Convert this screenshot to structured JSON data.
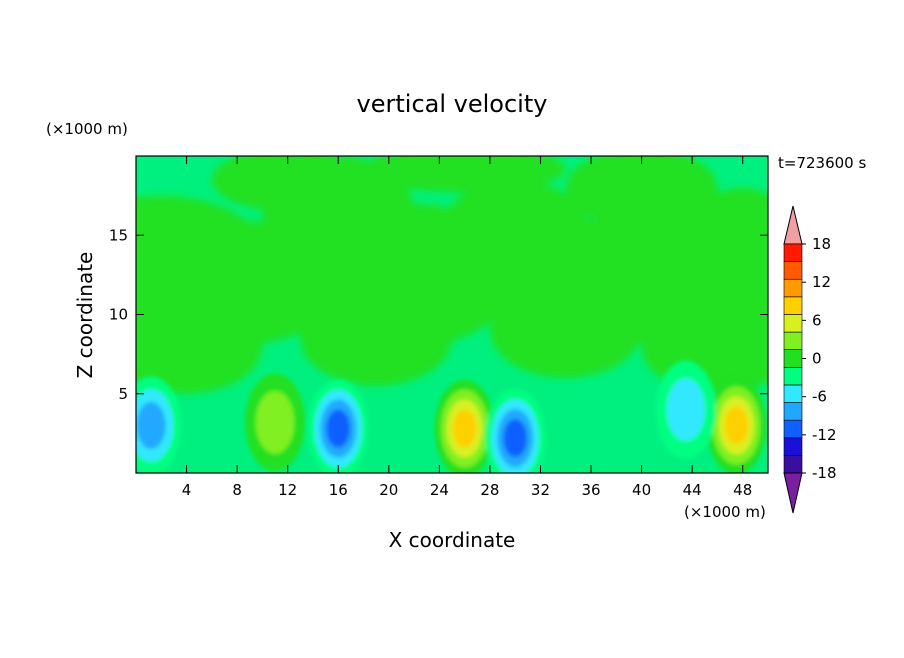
{
  "chart_data": {
    "type": "heatmap",
    "title": "vertical velocity",
    "time_label": "t=723600 s",
    "xlabel": "X coordinate",
    "ylabel": "Z coordinate",
    "x_unit_label": "(×1000 m)",
    "y_unit_label": "(×1000 m)",
    "xlim": [
      0,
      50
    ],
    "ylim": [
      0,
      20
    ],
    "x_ticks": [
      4,
      8,
      12,
      16,
      20,
      24,
      28,
      32,
      36,
      40,
      44,
      48
    ],
    "y_ticks": [
      5,
      10,
      15
    ],
    "colorbar": {
      "levels": [
        -21,
        -18,
        -15,
        -12,
        -9,
        -6,
        -3,
        0,
        3,
        6,
        9,
        12,
        15,
        18,
        21
      ],
      "tick_labels": [
        "18",
        "12",
        "6",
        "0",
        "-6",
        "-12",
        "-18"
      ],
      "tick_values": [
        18,
        12,
        6,
        0,
        -6,
        -12,
        -18
      ],
      "colors": [
        "#7a1fa0",
        "#3a0fa0",
        "#1a10d8",
        "#1060ff",
        "#20a8ff",
        "#30e8ff",
        "#00ff80",
        "#20e020",
        "#80f020",
        "#d8f020",
        "#ffd000",
        "#ff9a00",
        "#ff5a00",
        "#ff1a00",
        "#f0a0a0"
      ]
    },
    "features": [
      {
        "kind": "updraft",
        "x": 11,
        "z": 3.2,
        "peak": 6
      },
      {
        "kind": "updraft",
        "x": 26,
        "z": 2.8,
        "peak": 12
      },
      {
        "kind": "updraft",
        "x": 47.5,
        "z": 3.0,
        "peak": 12
      },
      {
        "kind": "downdraft",
        "x": 1.2,
        "z": 3.0,
        "peak": -9
      },
      {
        "kind": "downdraft",
        "x": 16,
        "z": 2.8,
        "peak": -12
      },
      {
        "kind": "downdraft",
        "x": 30,
        "z": 2.2,
        "peak": -12
      },
      {
        "kind": "downdraft",
        "x": 43.5,
        "z": 4.0,
        "peak": -6
      }
    ]
  }
}
